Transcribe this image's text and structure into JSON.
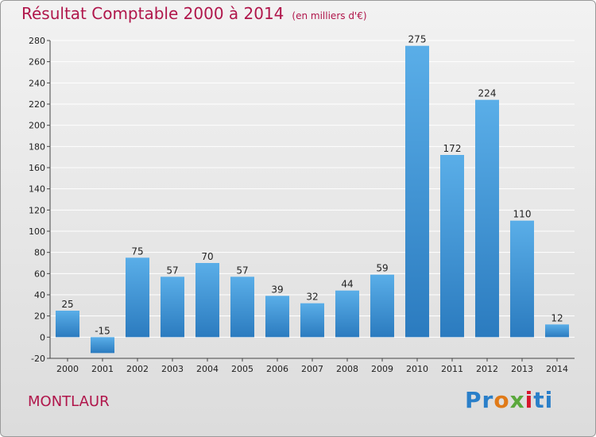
{
  "header": {
    "title": "Résultat Comptable 2000 à 2014",
    "unit": "(en milliers d'€)"
  },
  "footer": {
    "commune": "MONTLAUR",
    "brand": [
      "Pr",
      "o",
      "x",
      "i",
      "ti"
    ]
  },
  "colors": {
    "title": "#b0164b",
    "bar_light": "#5aaee8",
    "bar_dark": "#2b7bbf",
    "grid": "#ffffff"
  },
  "chart_data": {
    "type": "bar",
    "categories": [
      "2000",
      "2001",
      "2002",
      "2003",
      "2004",
      "2005",
      "2006",
      "2007",
      "2008",
      "2009",
      "2010",
      "2011",
      "2012",
      "2013",
      "2014"
    ],
    "values": [
      25,
      -15,
      75,
      57,
      70,
      57,
      39,
      32,
      44,
      59,
      275,
      172,
      224,
      110,
      12
    ],
    "title": "Résultat Comptable 2000 à 2014",
    "subtitle": "(en milliers d'€)",
    "ylim": [
      -20,
      280
    ],
    "yticks": [
      -20,
      0,
      20,
      40,
      60,
      80,
      100,
      120,
      140,
      160,
      180,
      200,
      220,
      240,
      260,
      280
    ],
    "grid": true
  }
}
